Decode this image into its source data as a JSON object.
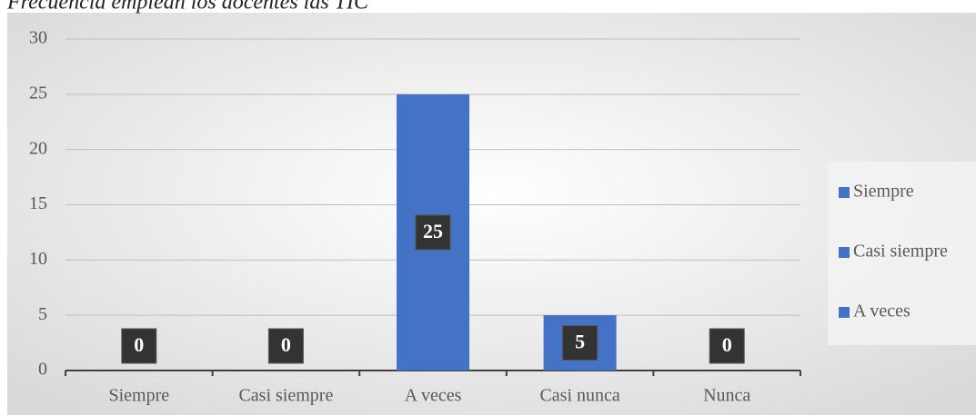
{
  "chart_data": {
    "type": "bar",
    "title": "Frecuencia emplean los docentes las TIC",
    "categories": [
      "Siempre",
      "Casi siempre",
      "A veces",
      "Casi nunca",
      "Nunca"
    ],
    "values": [
      0,
      0,
      25,
      5,
      0
    ],
    "color": "#4472c4",
    "ylim": [
      0,
      30
    ],
    "yticks": [
      0,
      5,
      10,
      15,
      20,
      25,
      30
    ],
    "grid": true,
    "legend": [
      "Siempre",
      "Casi siempre",
      "A veces"
    ],
    "legend_position": "right"
  }
}
